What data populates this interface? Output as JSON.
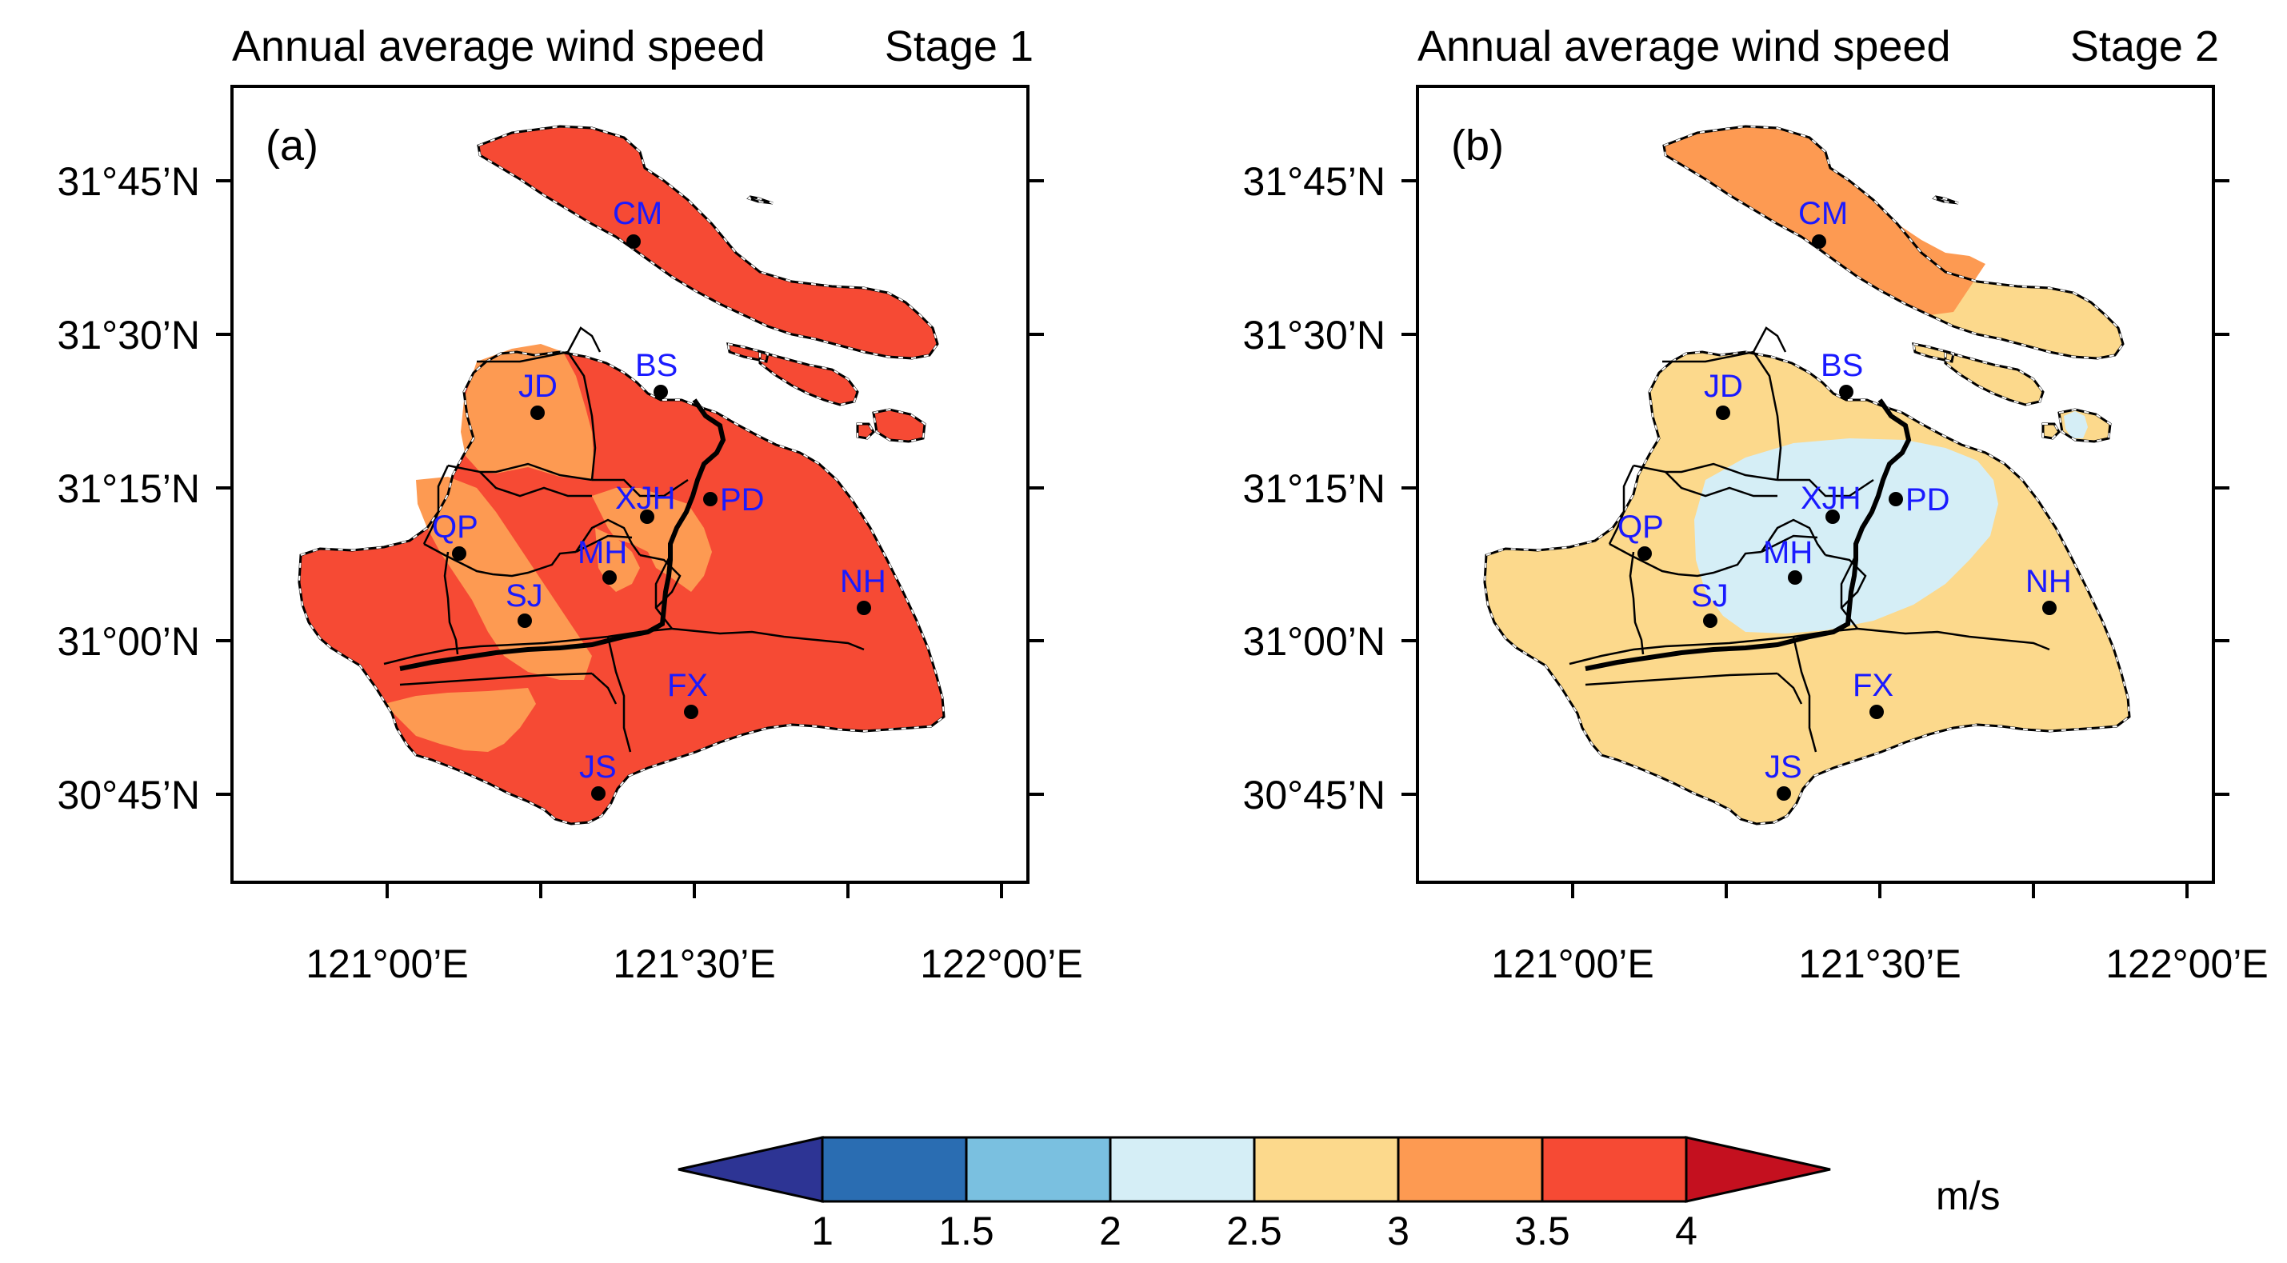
{
  "colors": {
    "c_1_1.5": "#2a6db2",
    "c_1.5_2": "#7ac0e0",
    "c_2_2.5": "#d5eef6",
    "c_2.5_3": "#fcd98c",
    "c_3_3.5": "#fd9a52",
    "c_3.5_4": "#f64a34",
    "under": "#2d3494",
    "over": "#c4101f"
  },
  "panels": [
    {
      "title": "Annual average wind speed",
      "stage": "Stage 1",
      "letter": "(a)",
      "base_color": "#f64a34",
      "secondary_color": "#fd9a52"
    },
    {
      "title": "Annual average wind speed",
      "stage": "Stage 2",
      "letter": "(b)",
      "base_color": "#fcd98c",
      "secondary_color": "#fd9a52",
      "center_color": "#d5eef6"
    }
  ],
  "axes": {
    "lat_labels": [
      "31°45’N",
      "31°30’N",
      "31°15’N",
      "31°00’N",
      "30°45’N"
    ],
    "lon_labels": [
      "121°00’E",
      "121°30’E",
      "122°00’E"
    ]
  },
  "stations": [
    "CM",
    "BS",
    "JD",
    "XJH",
    "PD",
    "QP",
    "MH",
    "SJ",
    "NH",
    "FX",
    "JS"
  ],
  "colorbar": {
    "labels": [
      "1",
      "1.5",
      "2",
      "2.5",
      "3",
      "3.5",
      "4"
    ],
    "unit": "m/s"
  }
}
